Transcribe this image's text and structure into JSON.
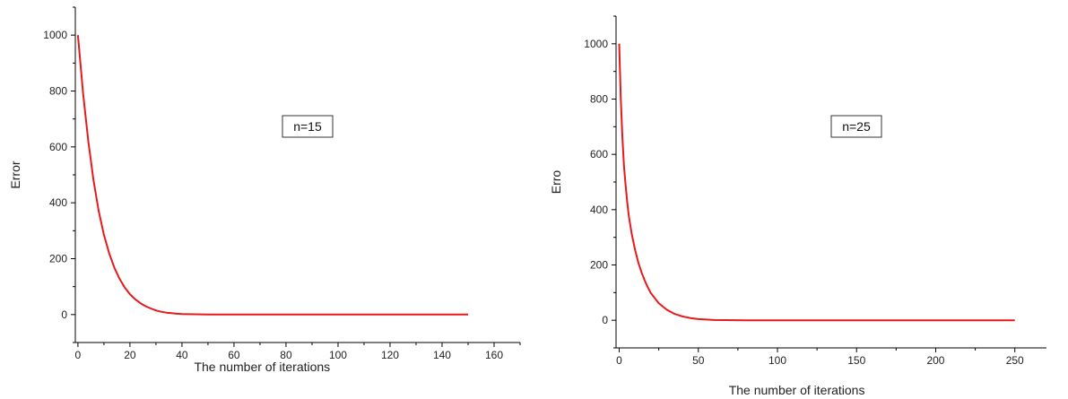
{
  "chart_data": [
    {
      "type": "line",
      "xlabel": "The number of iterations",
      "ylabel": "Error",
      "annotation": "n=15",
      "xlim": [
        -1,
        170
      ],
      "ylim": [
        -100,
        1100
      ],
      "xticks": [
        0,
        20,
        40,
        60,
        80,
        100,
        120,
        140,
        160
      ],
      "yticks": [
        0,
        200,
        400,
        600,
        800,
        1000
      ],
      "grid": false,
      "legend": "none",
      "series": [
        {
          "color": "#e8191c",
          "x": [
            0,
            2,
            4,
            6,
            8,
            10,
            12,
            14,
            16,
            18,
            20,
            22,
            24,
            26,
            28,
            30,
            32,
            34,
            36,
            38,
            40,
            45,
            50,
            60,
            80,
            100,
            120,
            150
          ],
          "y": [
            1000,
            790,
            620,
            480,
            370,
            285,
            220,
            168,
            128,
            97,
            73,
            55,
            41,
            30,
            22,
            15,
            10,
            7,
            5,
            3,
            2,
            1,
            0,
            0,
            0,
            0,
            0,
            0
          ]
        }
      ]
    },
    {
      "type": "line",
      "xlabel": "The number of iterations",
      "ylabel": "Erro",
      "annotation": "n=25",
      "xlim": [
        -2,
        270
      ],
      "ylim": [
        -100,
        1100
      ],
      "xticks": [
        0,
        50,
        100,
        150,
        200,
        250
      ],
      "yticks": [
        0,
        200,
        400,
        600,
        800,
        1000
      ],
      "grid": false,
      "legend": "none",
      "series": [
        {
          "color": "#e8191c",
          "x": [
            0,
            1,
            2,
            3,
            4,
            5,
            6,
            8,
            10,
            12,
            14,
            16,
            18,
            20,
            25,
            30,
            35,
            40,
            45,
            50,
            60,
            80,
            100,
            150,
            200,
            250
          ],
          "y": [
            1000,
            800,
            660,
            560,
            490,
            430,
            380,
            310,
            255,
            210,
            175,
            145,
            120,
            98,
            62,
            38,
            23,
            14,
            8,
            4,
            1,
            0,
            0,
            0,
            0,
            0
          ]
        }
      ]
    }
  ]
}
